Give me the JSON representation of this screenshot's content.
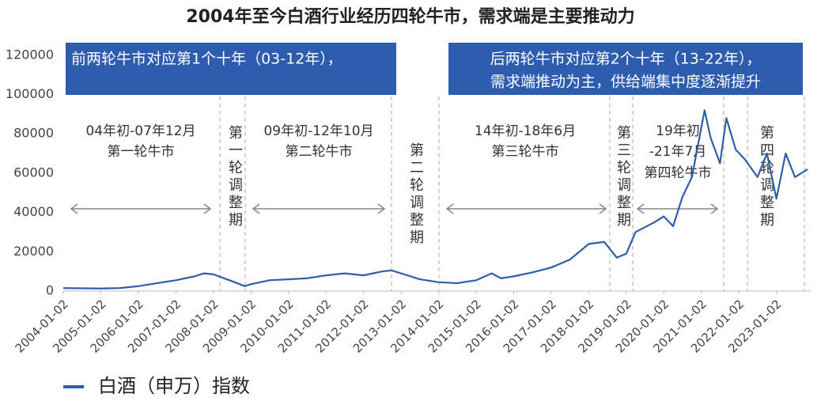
{
  "chart_data": {
    "type": "line",
    "title": "2004年至今白酒行业经历四轮牛市，需求端是主要推动力",
    "x": [
      "2004-01-02",
      "2004-07-02",
      "2005-01-02",
      "2005-07-02",
      "2006-01-02",
      "2006-07-02",
      "2007-01-02",
      "2007-07-02",
      "2007-10-02",
      "2008-01-02",
      "2008-07-02",
      "2008-11-02",
      "2009-01-02",
      "2009-07-02",
      "2010-01-02",
      "2010-07-02",
      "2011-01-02",
      "2011-07-02",
      "2012-01-02",
      "2012-07-02",
      "2012-10-02",
      "2013-01-02",
      "2013-07-02",
      "2014-01-02",
      "2014-07-02",
      "2015-01-02",
      "2015-06-02",
      "2015-09-02",
      "2016-01-02",
      "2016-07-02",
      "2017-01-02",
      "2017-07-02",
      "2018-01-02",
      "2018-06-02",
      "2018-10-02",
      "2019-01-02",
      "2019-04-02",
      "2019-10-02",
      "2020-01-02",
      "2020-04-02",
      "2020-07-02",
      "2020-10-02",
      "2021-02-02",
      "2021-04-02",
      "2021-07-02",
      "2021-09-02",
      "2021-12-02",
      "2022-03-02",
      "2022-07-02",
      "2022-10-02",
      "2023-01-02",
      "2023-04-02",
      "2023-07-02",
      "2023-11-02"
    ],
    "series": [
      {
        "name": "白酒（申万）指数",
        "color": "#2f5fa8",
        "values": [
          1500,
          1400,
          1300,
          1500,
          2500,
          4000,
          5500,
          7500,
          9000,
          8500,
          5000,
          2500,
          3500,
          5500,
          6000,
          6500,
          8000,
          9000,
          8000,
          10000,
          10500,
          9000,
          6000,
          4500,
          4000,
          5500,
          9000,
          6500,
          7500,
          9500,
          12000,
          16000,
          24000,
          25000,
          17000,
          19000,
          30000,
          35000,
          38000,
          33000,
          48000,
          58000,
          92000,
          78000,
          65000,
          88000,
          72000,
          67000,
          58000,
          70000,
          47000,
          70000,
          58000,
          62000
        ]
      }
    ],
    "xlim": [
      "2004-01-02",
      "2023-12-02"
    ],
    "xticks": [
      "2004-01-02",
      "2005-01-02",
      "2006-01-02",
      "2007-01-02",
      "2008-01-02",
      "2009-01-02",
      "2010-01-02",
      "2011-01-02",
      "2012-01-02",
      "2013-01-02",
      "2014-01-02",
      "2015-01-02",
      "2016-01-02",
      "2017-01-02",
      "2018-01-02",
      "2019-01-02",
      "2020-01-02",
      "2021-01-02",
      "2022-01-02",
      "2023-01-02"
    ],
    "ylim": [
      0,
      130000
    ],
    "yticks": [
      0,
      20000,
      40000,
      60000,
      80000,
      100000,
      120000
    ],
    "grid": false,
    "legend": "bottom-left",
    "annotations": {
      "box_left": "前两轮牛市对应第1个十年（03-12年），",
      "box_right": [
        "后两轮牛市对应第2个十年（13-22年），",
        "需求端推动为主，供给端集中度逐渐提升"
      ],
      "bull_markets": [
        [
          "04年初-07年12月",
          "第一轮牛市"
        ],
        [
          "09年初-12年10月",
          "第二轮牛市"
        ],
        [
          "14年初-18年6月",
          "第三轮牛市"
        ],
        [
          "19年初",
          "-21年7月",
          "第四轮牛市"
        ]
      ],
      "adjustments": [
        "第一轮调整期",
        "第二轮调整期",
        "第三轮调整期",
        "第四轮调整期"
      ]
    }
  }
}
